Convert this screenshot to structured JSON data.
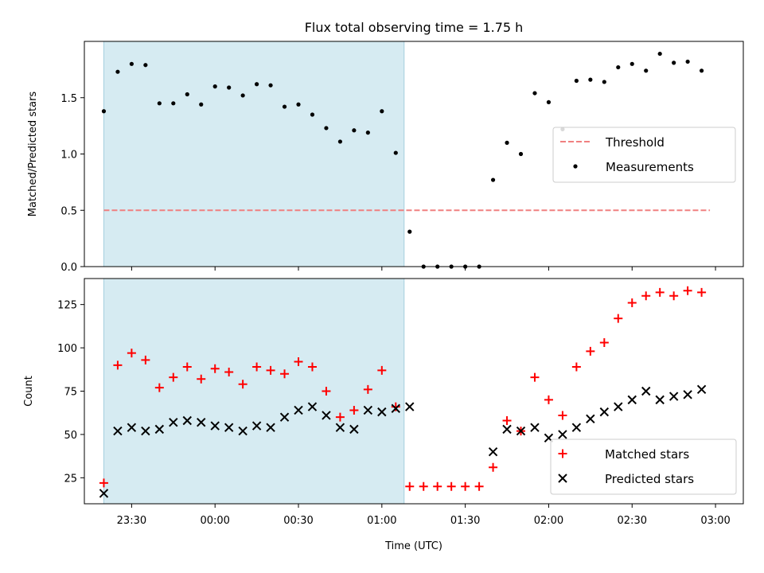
{
  "chart_data": [
    {
      "type": "scatter",
      "title": "Flux total observing time = 1.75 h",
      "ylabel": "Matched/Predicted stars",
      "xlabel": "",
      "ylim": [
        0,
        2.0
      ],
      "yticks": [
        0.0,
        0.5,
        1.0,
        1.5
      ],
      "ytick_labels": [
        "0.0",
        "0.5",
        "1.0",
        "1.5"
      ],
      "x_range": [
        "23:13",
        "03:10"
      ],
      "shaded_interval": [
        "23:20",
        "01:08"
      ],
      "shade_color": "#add8e6",
      "legend_position": "center-right",
      "threshold": {
        "name": "Threshold",
        "value": 0.5,
        "x": [
          "23:20",
          "02:58"
        ],
        "color": "#f08080"
      },
      "series": [
        {
          "name": "Measurements",
          "color": "#000000",
          "points": [
            [
              "23:20",
              1.38
            ],
            [
              "23:25",
              1.73
            ],
            [
              "23:30",
              1.8
            ],
            [
              "23:35",
              1.79
            ],
            [
              "23:40",
              1.45
            ],
            [
              "23:45",
              1.45
            ],
            [
              "23:50",
              1.53
            ],
            [
              "23:55",
              1.44
            ],
            [
              "00:00",
              1.6
            ],
            [
              "00:05",
              1.59
            ],
            [
              "00:10",
              1.52
            ],
            [
              "00:15",
              1.62
            ],
            [
              "00:20",
              1.61
            ],
            [
              "00:25",
              1.42
            ],
            [
              "00:30",
              1.44
            ],
            [
              "00:35",
              1.35
            ],
            [
              "00:40",
              1.23
            ],
            [
              "00:45",
              1.11
            ],
            [
              "00:50",
              1.21
            ],
            [
              "00:55",
              1.19
            ],
            [
              "01:00",
              1.38
            ],
            [
              "01:05",
              1.01
            ],
            [
              "01:10",
              0.31
            ],
            [
              "01:15",
              0.0
            ],
            [
              "01:20",
              0.0
            ],
            [
              "01:25",
              0.0
            ],
            [
              "01:30",
              0.0
            ],
            [
              "01:35",
              0.0
            ],
            [
              "01:40",
              0.77
            ],
            [
              "01:45",
              1.1
            ],
            [
              "01:50",
              1.0
            ],
            [
              "01:55",
              1.54
            ],
            [
              "02:00",
              1.46
            ],
            [
              "02:05",
              1.22
            ],
            [
              "02:10",
              1.65
            ],
            [
              "02:15",
              1.66
            ],
            [
              "02:20",
              1.64
            ],
            [
              "02:25",
              1.77
            ],
            [
              "02:30",
              1.8
            ],
            [
              "02:35",
              1.74
            ],
            [
              "02:40",
              1.89
            ],
            [
              "02:45",
              1.81
            ],
            [
              "02:50",
              1.82
            ],
            [
              "02:55",
              1.74
            ]
          ]
        }
      ],
      "legend": [
        "Threshold",
        "Measurements"
      ]
    },
    {
      "type": "scatter",
      "title": "",
      "ylabel": "Count",
      "xlabel": "Time (UTC)",
      "ylim": [
        10,
        140
      ],
      "yticks": [
        25,
        50,
        75,
        100,
        125
      ],
      "ytick_labels": [
        "25",
        "50",
        "75",
        "100",
        "125"
      ],
      "xticks": [
        "23:30",
        "00:00",
        "00:30",
        "01:00",
        "01:30",
        "02:00",
        "02:30",
        "03:00"
      ],
      "xtick_labels": [
        "23:30",
        "00:00",
        "00:30",
        "01:00",
        "01:30",
        "02:00",
        "02:30",
        "03:00"
      ],
      "x_range": [
        "23:13",
        "03:10"
      ],
      "shaded_interval": [
        "23:20",
        "01:08"
      ],
      "legend_position": "lower-right",
      "series": [
        {
          "name": "Matched stars",
          "marker": "+",
          "color": "#ff0000",
          "points": [
            [
              "23:20",
              22
            ],
            [
              "23:25",
              90
            ],
            [
              "23:30",
              97
            ],
            [
              "23:35",
              93
            ],
            [
              "23:40",
              77
            ],
            [
              "23:45",
              83
            ],
            [
              "23:50",
              89
            ],
            [
              "23:55",
              82
            ],
            [
              "00:00",
              88
            ],
            [
              "00:05",
              86
            ],
            [
              "00:10",
              79
            ],
            [
              "00:15",
              89
            ],
            [
              "00:20",
              87
            ],
            [
              "00:25",
              85
            ],
            [
              "00:30",
              92
            ],
            [
              "00:35",
              89
            ],
            [
              "00:40",
              75
            ],
            [
              "00:45",
              60
            ],
            [
              "00:50",
              64
            ],
            [
              "00:55",
              76
            ],
            [
              "01:00",
              87
            ],
            [
              "01:05",
              66
            ],
            [
              "01:10",
              20
            ],
            [
              "01:15",
              20
            ],
            [
              "01:20",
              20
            ],
            [
              "01:25",
              20
            ],
            [
              "01:30",
              20
            ],
            [
              "01:35",
              20
            ],
            [
              "01:40",
              31
            ],
            [
              "01:45",
              58
            ],
            [
              "01:50",
              52
            ],
            [
              "01:55",
              83
            ],
            [
              "02:00",
              70
            ],
            [
              "02:05",
              61
            ],
            [
              "02:10",
              89
            ],
            [
              "02:15",
              98
            ],
            [
              "02:20",
              103
            ],
            [
              "02:25",
              117
            ],
            [
              "02:30",
              126
            ],
            [
              "02:35",
              130
            ],
            [
              "02:40",
              132
            ],
            [
              "02:45",
              130
            ],
            [
              "02:50",
              133
            ],
            [
              "02:55",
              132
            ]
          ]
        },
        {
          "name": "Predicted stars",
          "marker": "x",
          "color": "#000000",
          "points": [
            [
              "23:20",
              16
            ],
            [
              "23:25",
              52
            ],
            [
              "23:30",
              54
            ],
            [
              "23:35",
              52
            ],
            [
              "23:40",
              53
            ],
            [
              "23:45",
              57
            ],
            [
              "23:50",
              58
            ],
            [
              "23:55",
              57
            ],
            [
              "00:00",
              55
            ],
            [
              "00:05",
              54
            ],
            [
              "00:10",
              52
            ],
            [
              "00:15",
              55
            ],
            [
              "00:20",
              54
            ],
            [
              "00:25",
              60
            ],
            [
              "00:30",
              64
            ],
            [
              "00:35",
              66
            ],
            [
              "00:40",
              61
            ],
            [
              "00:45",
              54
            ],
            [
              "00:50",
              53
            ],
            [
              "00:55",
              64
            ],
            [
              "01:00",
              63
            ],
            [
              "01:05",
              65
            ],
            [
              "01:10",
              66
            ],
            [
              "01:40",
              40
            ],
            [
              "01:45",
              53
            ],
            [
              "01:50",
              52
            ],
            [
              "01:55",
              54
            ],
            [
              "02:00",
              48
            ],
            [
              "02:05",
              50
            ],
            [
              "02:10",
              54
            ],
            [
              "02:15",
              59
            ],
            [
              "02:20",
              63
            ],
            [
              "02:25",
              66
            ],
            [
              "02:30",
              70
            ],
            [
              "02:35",
              75
            ],
            [
              "02:40",
              70
            ],
            [
              "02:45",
              72
            ],
            [
              "02:50",
              73
            ],
            [
              "02:55",
              76
            ]
          ]
        }
      ],
      "legend": [
        "Matched stars",
        "Predicted stars"
      ]
    }
  ]
}
